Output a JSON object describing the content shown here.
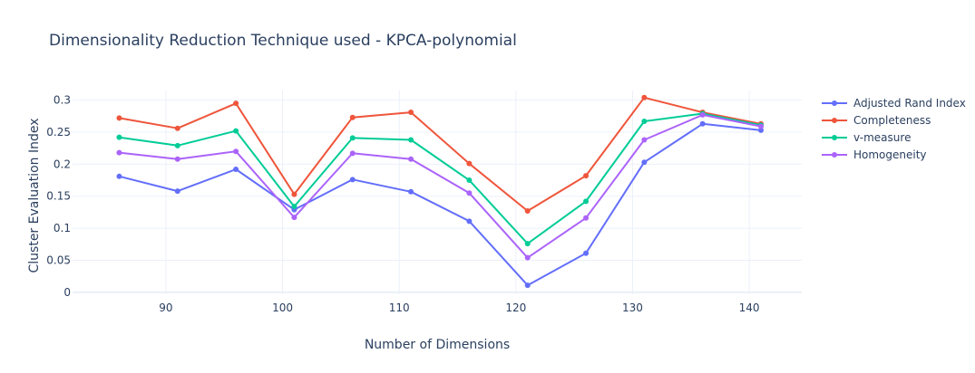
{
  "chart_data": {
    "type": "line",
    "title": "Dimensionality Reduction Technique used - KPCA-polynomial",
    "xlabel": "Number of Dimensions",
    "ylabel": "Cluster Evaluation Index",
    "x": [
      86,
      91,
      96,
      101,
      106,
      111,
      116,
      121,
      126,
      131,
      136,
      141
    ],
    "xlim": [
      82,
      144.5
    ],
    "ylim": [
      -0.003,
      0.315
    ],
    "xticks": [
      90,
      100,
      110,
      120,
      130,
      140
    ],
    "xtick_labels": [
      "90",
      "100",
      "110",
      "120",
      "130",
      "140"
    ],
    "yticks": [
      0,
      0.05,
      0.1,
      0.15,
      0.2,
      0.25,
      0.3
    ],
    "ytick_labels": [
      "0",
      "0.05",
      "0.1",
      "0.15",
      "0.2",
      "0.25",
      "0.3"
    ],
    "grid": true,
    "legend_position": "top-right",
    "series": [
      {
        "name": "Adjusted Rand Index",
        "color": "#636efa",
        "values": [
          0.181,
          0.158,
          0.192,
          0.129,
          0.176,
          0.157,
          0.111,
          0.011,
          0.061,
          0.203,
          0.263,
          0.253
        ]
      },
      {
        "name": "Completeness",
        "color": "#ef553b",
        "values": [
          0.272,
          0.256,
          0.295,
          0.153,
          0.273,
          0.281,
          0.201,
          0.127,
          0.182,
          0.304,
          0.281,
          0.263
        ]
      },
      {
        "name": "v-measure",
        "color": "#00cc96",
        "values": [
          0.242,
          0.229,
          0.252,
          0.134,
          0.241,
          0.238,
          0.175,
          0.076,
          0.142,
          0.267,
          0.279,
          0.261
        ]
      },
      {
        "name": "Homogeneity",
        "color": "#ab63fa",
        "values": [
          0.218,
          0.208,
          0.22,
          0.117,
          0.217,
          0.208,
          0.155,
          0.054,
          0.116,
          0.238,
          0.277,
          0.259
        ]
      }
    ]
  }
}
